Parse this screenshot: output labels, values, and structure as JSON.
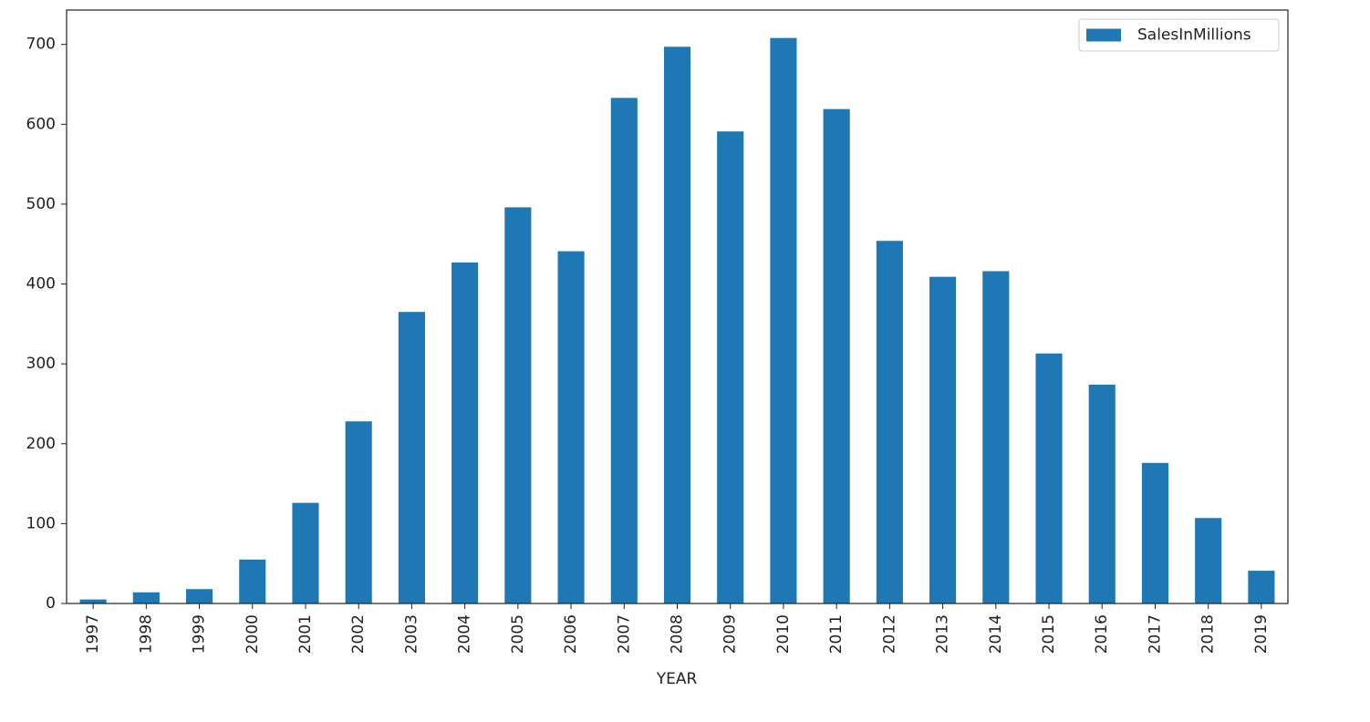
{
  "chart_data": {
    "type": "bar",
    "x_label": "YEAR",
    "categories": [
      "1997",
      "1998",
      "1999",
      "2000",
      "2001",
      "2002",
      "2003",
      "2004",
      "2005",
      "2006",
      "2007",
      "2008",
      "2009",
      "2010",
      "2011",
      "2012",
      "2013",
      "2014",
      "2015",
      "2016",
      "2017",
      "2018",
      "2019"
    ],
    "series": [
      {
        "name": "SalesInMillions",
        "color": "#1f77b4",
        "values": [
          5,
          14,
          18,
          55,
          126,
          228,
          365,
          427,
          496,
          441,
          633,
          697,
          591,
          708,
          619,
          454,
          409,
          416,
          313,
          274,
          176,
          107,
          41
        ]
      }
    ],
    "ylim": [
      0,
      743
    ],
    "yticks": [
      0,
      100,
      200,
      300,
      400,
      500,
      600,
      700
    ],
    "grid": false,
    "legend": "upper right"
  }
}
